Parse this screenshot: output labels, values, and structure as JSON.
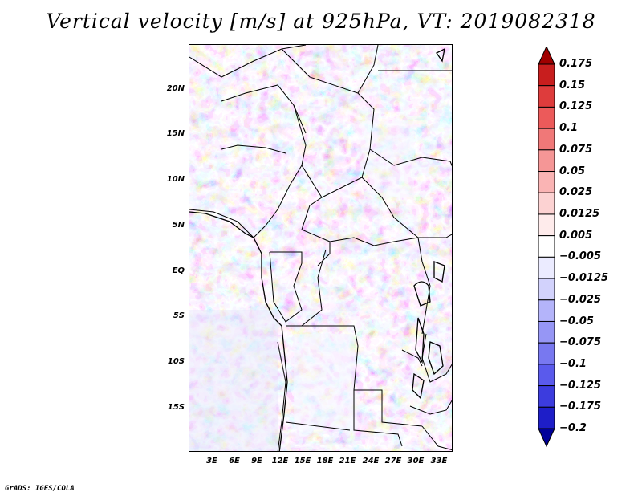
{
  "title": "Vertical velocity [m/s] at 925hPa, VT: 2019082318",
  "credit": "GrADS: IGES/COLA",
  "map": {
    "lat_labels": [
      "20N",
      "15N",
      "10N",
      "5N",
      "EQ",
      "5S",
      "10S",
      "15S"
    ],
    "lon_labels": [
      "3E",
      "6E",
      "9E",
      "12E",
      "15E",
      "18E",
      "21E",
      "24E",
      "27E",
      "30E",
      "33E"
    ]
  },
  "colorbar": {
    "levels": [
      "0.175",
      "0.15",
      "0.125",
      "0.1",
      "0.075",
      "0.05",
      "0.025",
      "0.0125",
      "0.005",
      "−0.005",
      "−0.0125",
      "−0.025",
      "−0.05",
      "−0.075",
      "−0.1",
      "−0.125",
      "−0.175",
      "−0.2"
    ],
    "colors": [
      "#a00000",
      "#c81e1e",
      "#de3c3c",
      "#ec5a5a",
      "#f07878",
      "#f59696",
      "#fab4b4",
      "#fcd2d2",
      "#feebeb",
      "#ffffff",
      "#ebebff",
      "#d2d2fc",
      "#b4b4fa",
      "#9696f5",
      "#7878f0",
      "#5a5aec",
      "#3c3cde",
      "#1e1ec8",
      "#00009a"
    ]
  }
}
